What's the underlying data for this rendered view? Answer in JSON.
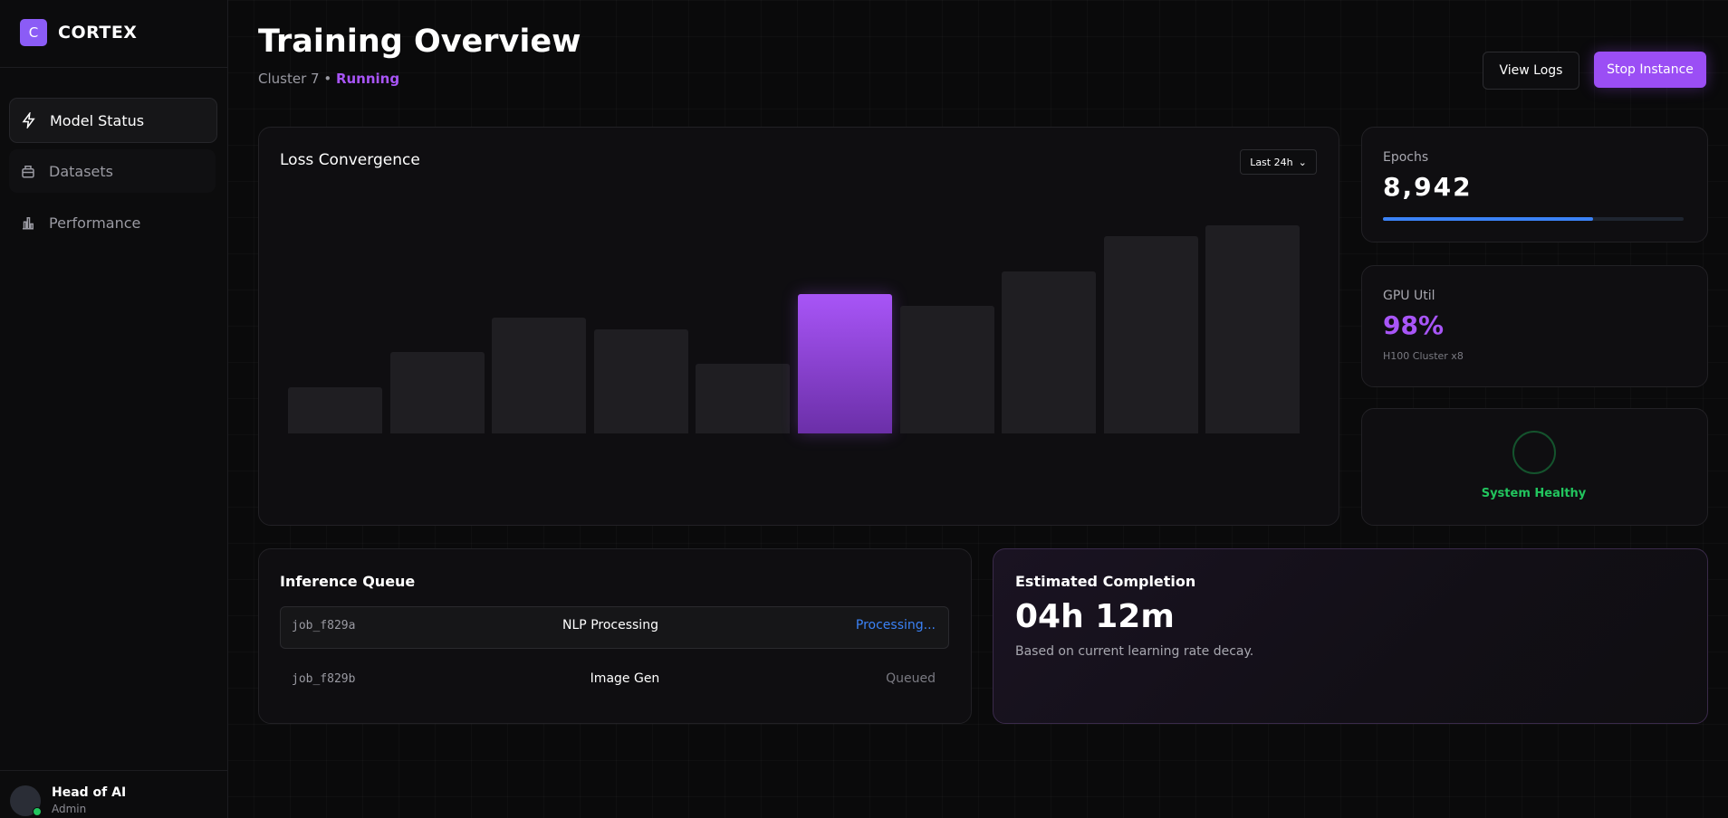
{
  "brand": {
    "logo": "C",
    "name": "CORTEX"
  },
  "nav": [
    "Model Status",
    "Datasets",
    "Performance"
  ],
  "user": {
    "name": "Head of AI",
    "role": "Admin"
  },
  "header": {
    "title": "Training Overview",
    "cluster": "Cluster 7 •",
    "status": "Running",
    "buttons": [
      "View Logs",
      "Stop Instance"
    ]
  },
  "chart_data": {
    "type": "bar",
    "title": "Loss Convergence",
    "range_select": "Last 24h",
    "values": [
      20,
      35,
      50,
      45,
      30,
      60,
      55,
      70,
      85,
      90
    ],
    "ylim": [
      0,
      100
    ],
    "color": "#1f1e22",
    "highlight_color": "#a855f7",
    "highlight_index": 5
  },
  "metrics": {
    "epochs": {
      "label": "Epochs",
      "value": "8,942",
      "progress": 70
    },
    "gpu": {
      "label": "GPU Util",
      "value": "98%",
      "sub": "H100 Cluster x8"
    },
    "health": {
      "label": "System Healthy"
    }
  },
  "queue": {
    "title": "Inference Queue",
    "rows": [
      [
        "job_f829a",
        "NLP Processing",
        "Processing..."
      ],
      [
        "job_f829b",
        "Image Gen",
        "Queued"
      ]
    ]
  },
  "completion": {
    "title": "Estimated Completion",
    "value": "04h 12m",
    "note": "Based on current learning rate decay."
  }
}
